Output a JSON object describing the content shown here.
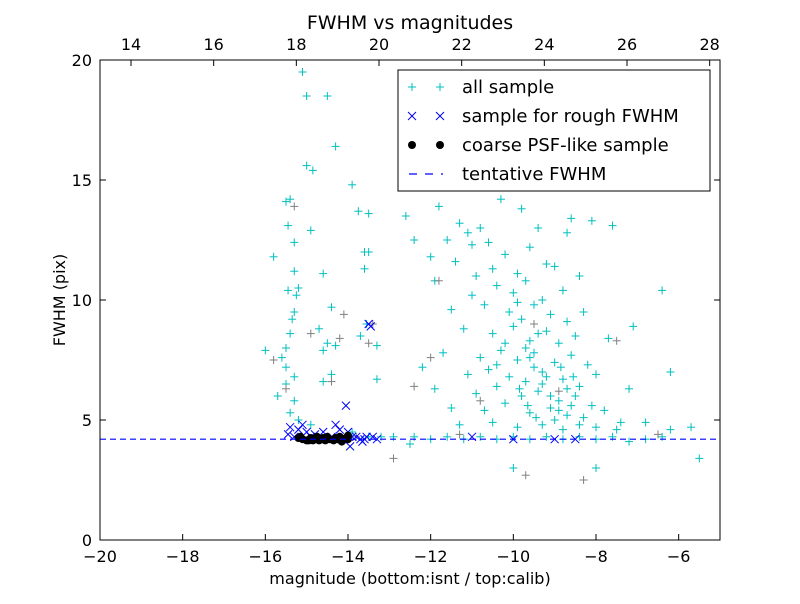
{
  "chart_data": {
    "type": "scatter",
    "title": "FWHM vs magnitudes",
    "xlabel": "magnitude (bottom:isnt / top:calib)",
    "ylabel": "FWHM (pix)",
    "xlim": [
      -20,
      -5
    ],
    "ylim": [
      0,
      20
    ],
    "x_ticks": [
      -20,
      -18,
      -16,
      -14,
      -12,
      -10,
      -8,
      -6
    ],
    "x_tick_labels": [
      "−20",
      "−18",
      "−16",
      "−14",
      "−12",
      "−10",
      "−8",
      "−6"
    ],
    "y_ticks": [
      0,
      5,
      10,
      15,
      20
    ],
    "y_tick_labels": [
      "0",
      "5",
      "10",
      "15",
      "20"
    ],
    "top_axis": {
      "offset": 33.25,
      "ticks": [
        14,
        16,
        18,
        20,
        22,
        24,
        26,
        28
      ],
      "tick_labels": [
        "14",
        "16",
        "18",
        "20",
        "22",
        "24",
        "26",
        "28"
      ]
    },
    "grid": false,
    "legend_position": "top-right",
    "series": [
      {
        "name": "all sample",
        "marker": "plus",
        "color": "#00BFBF",
        "points": [
          [
            -15.1,
            19.5
          ],
          [
            -15.0,
            18.5
          ],
          [
            -14.5,
            18.5
          ],
          [
            -14.3,
            16.4
          ],
          [
            -15.0,
            15.6
          ],
          [
            -14.85,
            15.4
          ],
          [
            -13.9,
            14.8
          ],
          [
            -15.4,
            14.2
          ],
          [
            -15.5,
            14.1
          ],
          [
            -15.45,
            13.1
          ],
          [
            -13.75,
            13.7
          ],
          [
            -13.5,
            13.6
          ],
          [
            -15.3,
            12.4
          ],
          [
            -14.9,
            12.9
          ],
          [
            -13.6,
            12.0
          ],
          [
            -13.5,
            12.0
          ],
          [
            -15.8,
            11.8
          ],
          [
            -15.3,
            11.2
          ],
          [
            -15.2,
            10.5
          ],
          [
            -14.6,
            11.1
          ],
          [
            -13.6,
            11.3
          ],
          [
            -15.45,
            10.4
          ],
          [
            -15.25,
            10.2
          ],
          [
            -15.3,
            9.5
          ],
          [
            -14.4,
            9.7
          ],
          [
            -13.55,
            9.0
          ],
          [
            -15.35,
            9.2
          ],
          [
            -15.4,
            8.6
          ],
          [
            -14.7,
            8.8
          ],
          [
            -14.5,
            8.2
          ],
          [
            -13.7,
            8.5
          ],
          [
            -15.5,
            8.0
          ],
          [
            -15.6,
            7.6
          ],
          [
            -14.6,
            7.9
          ],
          [
            -14.3,
            8.1
          ],
          [
            -13.3,
            8.1
          ],
          [
            -16.0,
            7.9
          ],
          [
            -15.5,
            7.2
          ],
          [
            -15.3,
            6.8
          ],
          [
            -14.6,
            6.6
          ],
          [
            -14.4,
            6.9
          ],
          [
            -13.3,
            6.7
          ],
          [
            -15.5,
            6.5
          ],
          [
            -15.7,
            6.0
          ],
          [
            -15.3,
            5.8
          ],
          [
            -15.4,
            5.3
          ],
          [
            -15.2,
            5.0
          ],
          [
            -14.9,
            4.8
          ],
          [
            -13.9,
            4.5
          ],
          [
            -13.5,
            4.3
          ],
          [
            -13.2,
            4.3
          ],
          [
            -12.9,
            4.3
          ],
          [
            -12.6,
            13.5
          ],
          [
            -11.8,
            13.9
          ],
          [
            -11.3,
            13.2
          ],
          [
            -11.1,
            12.8
          ],
          [
            -10.8,
            13.0
          ],
          [
            -10.3,
            14.2
          ],
          [
            -9.8,
            13.8
          ],
          [
            -9.4,
            13.0
          ],
          [
            -8.6,
            13.4
          ],
          [
            -8.1,
            13.3
          ],
          [
            -7.6,
            13.1
          ],
          [
            -12.4,
            12.5
          ],
          [
            -11.6,
            12.5
          ],
          [
            -11.0,
            12.3
          ],
          [
            -10.6,
            12.4
          ],
          [
            -10.2,
            11.9
          ],
          [
            -9.6,
            12.2
          ],
          [
            -9.2,
            11.5
          ],
          [
            -8.7,
            12.8
          ],
          [
            -12.0,
            11.8
          ],
          [
            -11.4,
            11.6
          ],
          [
            -10.9,
            11.0
          ],
          [
            -10.5,
            11.3
          ],
          [
            -9.9,
            11.1
          ],
          [
            -9.0,
            11.4
          ],
          [
            -8.4,
            11.0
          ],
          [
            -11.9,
            10.8
          ],
          [
            -11.0,
            10.2
          ],
          [
            -10.4,
            10.6
          ],
          [
            -10.0,
            10.3
          ],
          [
            -9.7,
            10.8
          ],
          [
            -9.3,
            10.0
          ],
          [
            -8.8,
            10.4
          ],
          [
            -6.4,
            10.4
          ],
          [
            -11.5,
            9.6
          ],
          [
            -10.7,
            9.8
          ],
          [
            -10.1,
            9.5
          ],
          [
            -9.8,
            9.2
          ],
          [
            -9.5,
            9.8
          ],
          [
            -9.1,
            9.4
          ],
          [
            -8.7,
            9.1
          ],
          [
            -8.3,
            9.5
          ],
          [
            -11.2,
            8.8
          ],
          [
            -10.5,
            8.6
          ],
          [
            -10.0,
            8.9
          ],
          [
            -9.6,
            8.3
          ],
          [
            -9.2,
            8.7
          ],
          [
            -8.9,
            8.2
          ],
          [
            -8.5,
            8.5
          ],
          [
            -7.1,
            8.9
          ],
          [
            -11.7,
            7.8
          ],
          [
            -10.8,
            7.6
          ],
          [
            -10.3,
            7.9
          ],
          [
            -9.9,
            7.5
          ],
          [
            -9.5,
            7.8
          ],
          [
            -9.0,
            7.4
          ],
          [
            -8.6,
            7.7
          ],
          [
            -8.2,
            7.3
          ],
          [
            -7.7,
            8.4
          ],
          [
            -12.2,
            7.2
          ],
          [
            -11.1,
            6.9
          ],
          [
            -10.6,
            7.1
          ],
          [
            -10.1,
            6.8
          ],
          [
            -9.7,
            6.6
          ],
          [
            -9.3,
            7.0
          ],
          [
            -8.8,
            6.7
          ],
          [
            -8.4,
            6.4
          ],
          [
            -8.0,
            6.9
          ],
          [
            -7.2,
            6.3
          ],
          [
            -6.2,
            7.0
          ],
          [
            -11.9,
            6.3
          ],
          [
            -10.9,
            6.1
          ],
          [
            -10.4,
            6.4
          ],
          [
            -9.8,
            6.0
          ],
          [
            -9.4,
            6.2
          ],
          [
            -8.9,
            5.8
          ],
          [
            -8.5,
            6.0
          ],
          [
            -8.1,
            5.6
          ],
          [
            -11.5,
            5.5
          ],
          [
            -10.7,
            5.4
          ],
          [
            -10.2,
            5.7
          ],
          [
            -9.6,
            5.3
          ],
          [
            -9.1,
            5.5
          ],
          [
            -8.7,
            5.2
          ],
          [
            -8.3,
            5.1
          ],
          [
            -7.8,
            5.4
          ],
          [
            -7.4,
            4.9
          ],
          [
            -11.3,
            4.8
          ],
          [
            -10.5,
            4.9
          ],
          [
            -9.9,
            4.7
          ],
          [
            -9.3,
            4.8
          ],
          [
            -8.8,
            4.6
          ],
          [
            -8.0,
            4.7
          ],
          [
            -7.5,
            4.6
          ],
          [
            -6.8,
            4.9
          ],
          [
            -6.2,
            4.6
          ],
          [
            -5.7,
            4.7
          ],
          [
            -12.4,
            4.3
          ],
          [
            -12.0,
            4.2
          ],
          [
            -11.6,
            4.3
          ],
          [
            -11.2,
            4.2
          ],
          [
            -10.8,
            4.3
          ],
          [
            -10.4,
            4.2
          ],
          [
            -10.0,
            4.3
          ],
          [
            -9.6,
            4.2
          ],
          [
            -9.2,
            4.3
          ],
          [
            -8.8,
            4.2
          ],
          [
            -8.4,
            4.3
          ],
          [
            -8.0,
            4.2
          ],
          [
            -7.6,
            4.3
          ],
          [
            -7.2,
            4.1
          ],
          [
            -6.8,
            4.2
          ],
          [
            -6.4,
            4.3
          ],
          [
            -5.5,
            3.4
          ],
          [
            -10.0,
            3.0
          ],
          [
            -8.0,
            3.0
          ],
          [
            -12.5,
            4.0
          ],
          [
            -9.9,
            9.9
          ],
          [
            -9.7,
            8.0
          ],
          [
            -9.5,
            7.2
          ],
          [
            -9.3,
            6.5
          ],
          [
            -9.1,
            6.0
          ],
          [
            -8.9,
            5.4
          ],
          [
            -8.7,
            6.3
          ],
          [
            -9.6,
            7.6
          ],
          [
            -9.4,
            8.6
          ],
          [
            -9.2,
            6.8
          ],
          [
            -9.0,
            5.0
          ],
          [
            -8.6,
            5.6
          ],
          [
            -8.4,
            4.8
          ],
          [
            -10.2,
            8.2
          ],
          [
            -10.4,
            7.3
          ],
          [
            -9.85,
            6.3
          ],
          [
            -9.65,
            5.6
          ],
          [
            -9.45,
            5.1
          ],
          [
            -8.85,
            7.2
          ],
          [
            -8.55,
            6.8
          ]
        ]
      },
      {
        "name": "",
        "marker": "plus",
        "color": "#808080",
        "points": [
          [
            -11.8,
            10.8
          ],
          [
            -12.0,
            7.6
          ],
          [
            -12.4,
            6.4
          ],
          [
            -14.2,
            8.4
          ],
          [
            -14.1,
            9.4
          ],
          [
            -13.4,
            9.0
          ],
          [
            -13.5,
            8.2
          ],
          [
            -14.9,
            8.6
          ],
          [
            -14.4,
            6.6
          ],
          [
            -15.3,
            13.9
          ],
          [
            -15.8,
            7.5
          ],
          [
            -12.9,
            3.4
          ],
          [
            -8.3,
            2.5
          ],
          [
            -9.7,
            2.7
          ],
          [
            -6.5,
            4.4
          ],
          [
            -11.3,
            4.4
          ],
          [
            -10.8,
            5.8
          ],
          [
            -9.5,
            9.0
          ],
          [
            -7.5,
            8.3
          ],
          [
            -8.9,
            6.2
          ],
          [
            -13.8,
            4.3
          ],
          [
            -15.5,
            6.3
          ]
        ]
      },
      {
        "name": "sample for rough FWHM",
        "marker": "x",
        "color": "#0000FF",
        "points": [
          [
            -15.4,
            4.7
          ],
          [
            -15.2,
            4.6
          ],
          [
            -15.0,
            4.5
          ],
          [
            -14.8,
            4.4
          ],
          [
            -14.6,
            4.5
          ],
          [
            -14.4,
            4.3
          ],
          [
            -14.2,
            4.6
          ],
          [
            -14.0,
            4.5
          ],
          [
            -13.8,
            4.3
          ],
          [
            -13.6,
            4.2
          ],
          [
            -13.4,
            4.3
          ],
          [
            -14.05,
            5.6
          ],
          [
            -13.5,
            9.0
          ],
          [
            -13.45,
            8.9
          ],
          [
            -15.1,
            4.8
          ],
          [
            -14.7,
            4.2
          ],
          [
            -14.3,
            4.8
          ],
          [
            -13.95,
            3.9
          ],
          [
            -13.7,
            4.2
          ],
          [
            -15.3,
            4.3
          ],
          [
            -10.0,
            4.2
          ],
          [
            -9.0,
            4.2
          ],
          [
            -8.5,
            4.2
          ],
          [
            -11.0,
            4.3
          ],
          [
            -13.3,
            4.2
          ],
          [
            -13.9,
            4.3
          ],
          [
            -15.45,
            4.4
          ],
          [
            -14.9,
            4.3
          ],
          [
            -14.5,
            4.2
          ],
          [
            -13.55,
            4.3
          ],
          [
            -13.65,
            4.1
          ],
          [
            -14.15,
            4.2
          ]
        ]
      },
      {
        "name": "coarse PSF-like sample",
        "marker": "dot",
        "color": "#000000",
        "points": [
          [
            -15.2,
            4.25
          ],
          [
            -15.1,
            4.2
          ],
          [
            -15.0,
            4.15
          ],
          [
            -14.9,
            4.25
          ],
          [
            -14.8,
            4.2
          ],
          [
            -14.7,
            4.15
          ],
          [
            -14.6,
            4.25
          ],
          [
            -14.5,
            4.3
          ],
          [
            -14.45,
            4.2
          ],
          [
            -14.35,
            4.15
          ],
          [
            -14.25,
            4.2
          ],
          [
            -14.2,
            4.3
          ],
          [
            -14.15,
            4.1
          ],
          [
            -14.1,
            4.2
          ],
          [
            -14.05,
            4.25
          ],
          [
            -14.0,
            4.2
          ],
          [
            -14.0,
            4.35
          ],
          [
            -14.3,
            4.25
          ],
          [
            -14.55,
            4.15
          ],
          [
            -14.75,
            4.3
          ],
          [
            -14.95,
            4.15
          ],
          [
            -15.15,
            4.3
          ],
          [
            -14.65,
            4.2
          ],
          [
            -14.85,
            4.15
          ]
        ]
      }
    ],
    "lines": [
      {
        "name": "tentative FWHM",
        "style": "dashed",
        "color": "#0000FF",
        "y": 4.2
      }
    ],
    "legend": [
      {
        "label": "all sample",
        "marker": "plus",
        "color": "#00BFBF"
      },
      {
        "label": "sample for rough FWHM",
        "marker": "x",
        "color": "#0000FF"
      },
      {
        "label": "coarse PSF-like sample",
        "marker": "dot",
        "color": "#000000"
      },
      {
        "label": "tentative FWHM",
        "marker": "dash",
        "color": "#0000FF"
      }
    ]
  }
}
